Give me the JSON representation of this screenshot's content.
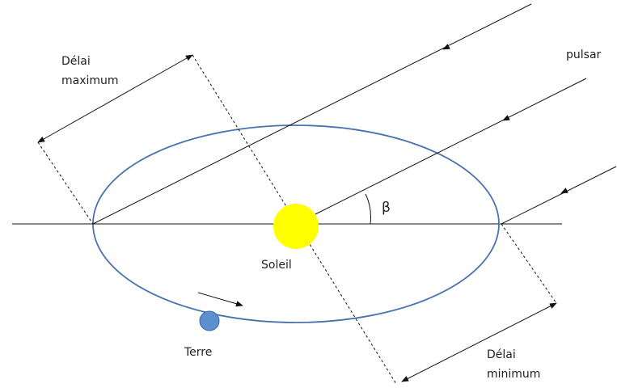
{
  "labels": {
    "delay_max": [
      "Délai",
      "maximum"
    ],
    "pulsar": "pulsar",
    "angle": "β",
    "sun": "Soleil",
    "earth": "Terre",
    "delay_min": [
      "Délai",
      "minimum"
    ]
  }
}
